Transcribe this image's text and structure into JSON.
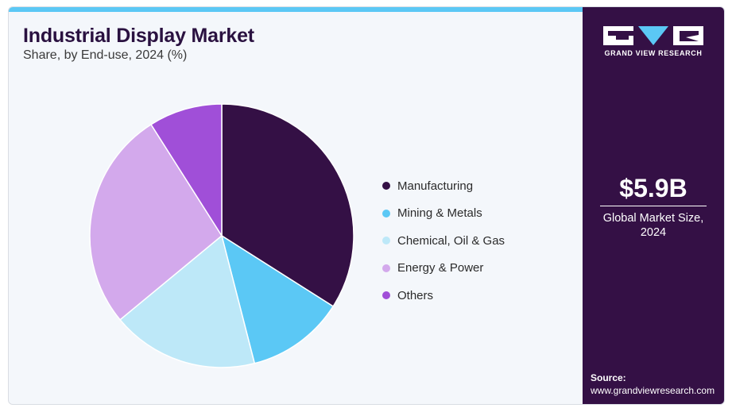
{
  "header": {
    "title": "Industrial Display Market",
    "subtitle": "Share, by End-use, 2024 (%)"
  },
  "chart_data": {
    "type": "pie",
    "title": "Industrial Display Market",
    "subtitle": "Share, by End-use, 2024 (%)",
    "categories": [
      "Manufacturing",
      "Mining & Metals",
      "Chemical, Oil & Gas",
      "Energy & Power",
      "Others"
    ],
    "values": [
      34,
      12,
      18,
      27,
      9
    ],
    "colors": [
      "#341045",
      "#5bc8f5",
      "#bde8f8",
      "#d3a9ec",
      "#a04fd8"
    ],
    "legend": "right"
  },
  "side_panel": {
    "logo_text": "GRAND VIEW RESEARCH",
    "market_value": "$5.9B",
    "market_label": "Global Market Size, 2024",
    "source_label": "Source:",
    "source_url": "www.grandviewresearch.com"
  }
}
